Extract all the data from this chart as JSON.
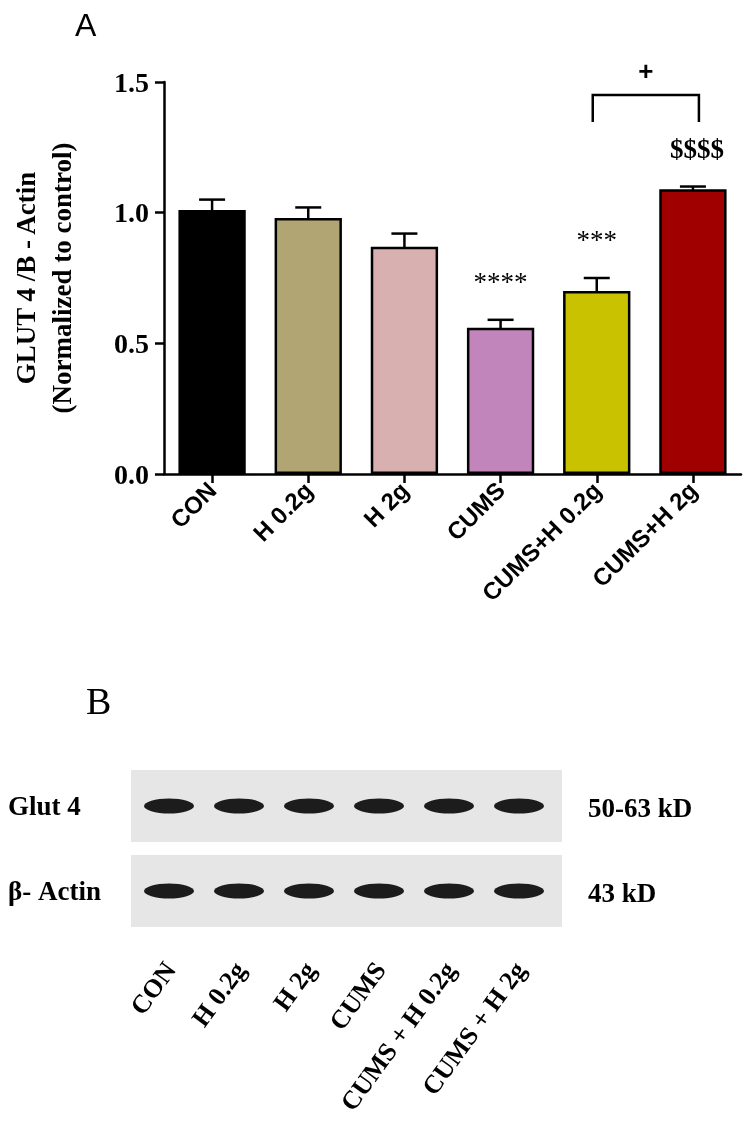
{
  "chart_data": [
    {
      "type": "bar",
      "title": "A",
      "ylabel": "GLUT 4 /B - Actin\n(Normalized to control)",
      "categories": [
        "CON",
        "H 0.2g",
        "H 2g",
        "CUMS",
        "CUMS+H 0.2g",
        "CUMS+H 2g"
      ],
      "values": [
        1.01,
        0.98,
        0.87,
        0.56,
        0.7,
        1.09
      ],
      "errors": [
        0.04,
        0.04,
        0.05,
        0.03,
        0.05,
        0.01
      ],
      "colors": [
        "#000000",
        "#b1a673",
        "#d8b0b0",
        "#c285bb",
        "#c8c200",
        "#a00000"
      ],
      "ylim": [
        0,
        1.5
      ],
      "yticks": [
        {
          "value": 0,
          "label": "0.0"
        },
        {
          "value": 0.5,
          "label": "0.5"
        },
        {
          "value": 1,
          "label": "1.0"
        },
        {
          "value": 1.5,
          "label": "1.5"
        }
      ],
      "grid": false,
      "annotations": [
        "****",
        "***",
        "$$$$",
        "+"
      ]
    },
    {
      "type": "other",
      "title": "B",
      "categories": [
        "CON",
        "H 0.2g",
        "H 2g",
        "CUMS",
        "CUMS + H 0.2g",
        "CUMS + H 2g"
      ],
      "y_categories": [
        "Glut 4",
        "β- Actin"
      ],
      "y2_categories": [
        "50-63 kD",
        "43 kD"
      ]
    }
  ]
}
